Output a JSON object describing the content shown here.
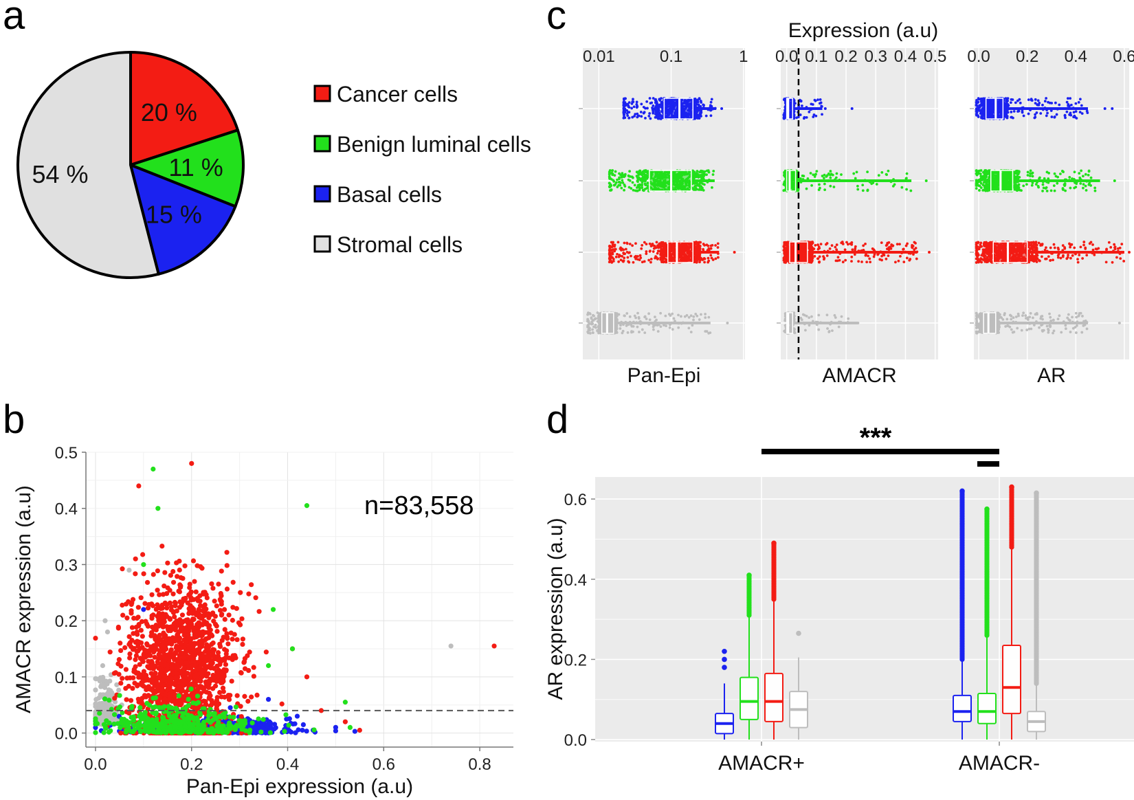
{
  "colors": {
    "cancer": "#f31c14",
    "benign": "#22e01c",
    "basal": "#1b22f0",
    "stromal": "#bdbdbd",
    "stromal_pie": "#e0e0e0",
    "panel_bg": "#ebebeb"
  },
  "panel_labels": {
    "a": "a",
    "b": "b",
    "c": "c",
    "d": "d"
  },
  "chart_data": [
    {
      "id": "a",
      "type": "pie",
      "slices": [
        {
          "name": "Cancer cells",
          "value": 20,
          "label": "20 %",
          "color": "#f31c14"
        },
        {
          "name": "Benign luminal cells",
          "value": 11,
          "label": "11 %",
          "color": "#22e01c"
        },
        {
          "name": "Basal cells",
          "value": 15,
          "label": "15 %",
          "color": "#1b22f0"
        },
        {
          "name": "Stromal cells",
          "value": 54,
          "label": "54 %",
          "color": "#e0e0e0"
        }
      ],
      "legend": [
        "Cancer cells",
        "Benign luminal cells",
        "Basal cells",
        "Stromal cells"
      ],
      "legend_position": "right"
    },
    {
      "id": "b",
      "type": "scatter",
      "xlabel": "Pan-Epi expression (a.u)",
      "ylabel": "AMACR expression (a.u)",
      "xlim": [
        -0.02,
        0.87
      ],
      "ylim": [
        -0.025,
        0.5
      ],
      "xticks": [
        "0.0",
        "0.2",
        "0.4",
        "0.6",
        "0.8"
      ],
      "yticks": [
        "0.0",
        "0.1",
        "0.2",
        "0.3",
        "0.4",
        "0.5"
      ],
      "threshold": 0.04,
      "annotation": "n=83,558",
      "series": [
        {
          "name": "Stromal cells",
          "color": "#bdbdbd",
          "cluster": {
            "x_mean": 0.02,
            "x_sd": 0.012,
            "y_mean": 0.015,
            "y_sd": 0.04,
            "n": 260
          },
          "outliers": [
            [
              0.74,
              0.155
            ],
            [
              0.02,
              0.2
            ],
            [
              0.07,
              0.29
            ],
            [
              0.025,
              0.18
            ],
            [
              0.015,
              0.12
            ]
          ]
        },
        {
          "name": "Basal cells",
          "color": "#1b22f0",
          "cluster": {
            "x_mean": 0.24,
            "x_sd": 0.08,
            "y_mean": 0.012,
            "y_sd": 0.012,
            "n": 650
          },
          "outliers": [
            [
              0.54,
              0.003
            ],
            [
              0.1,
              0.22
            ],
            [
              0.36,
              0.06
            ],
            [
              0.42,
              0.03
            ]
          ]
        },
        {
          "name": "Cancer cells",
          "color": "#f31c14",
          "cluster": {
            "x_mean": 0.18,
            "x_sd": 0.055,
            "y_mean": 0.11,
            "y_sd": 0.075,
            "n": 1500
          },
          "outliers": [
            [
              0.2,
              0.48
            ],
            [
              0.09,
              0.44
            ],
            [
              0.83,
              0.155
            ],
            [
              0.55,
              0.005
            ],
            [
              0.52,
              0.02
            ],
            [
              0.44,
              0.1
            ],
            [
              0.41,
              0.15
            ],
            [
              0.47,
              0.04
            ]
          ]
        },
        {
          "name": "Benign luminal cells",
          "color": "#22e01c",
          "cluster": {
            "x_mean": 0.17,
            "x_sd": 0.08,
            "y_mean": 0.02,
            "y_sd": 0.025,
            "n": 380
          },
          "outliers": [
            [
              0.12,
              0.47
            ],
            [
              0.44,
              0.405
            ],
            [
              0.52,
              0.055
            ],
            [
              0.37,
              0.22
            ],
            [
              0.41,
              0.15
            ],
            [
              0.13,
              0.4
            ],
            [
              0.36,
              0.12
            ],
            [
              0.53,
              0.01
            ],
            [
              0.1,
              0.3
            ]
          ]
        }
      ]
    },
    {
      "id": "c",
      "type": "scatter",
      "title": "Expression (a.u)",
      "subplots": [
        {
          "name": "Pan-Epi",
          "scale": "log",
          "xlim": [
            0.006,
            1.05
          ],
          "ticks": [
            {
              "v": 0.01,
              "label": "0.01"
            },
            {
              "v": 0.1,
              "label": "0.1"
            },
            {
              "v": 1,
              "label": "1"
            }
          ],
          "rows": [
            {
              "group": "Basal cells",
              "color": "#1b22f0",
              "lo": 0.022,
              "hi": 0.42,
              "q1": 0.08,
              "med": 0.13,
              "q3": 0.2,
              "n": 600,
              "outliers": [
                0.5
              ]
            },
            {
              "group": "Benign luminal cells",
              "color": "#22e01c",
              "lo": 0.014,
              "hi": 0.4,
              "q1": 0.05,
              "med": 0.1,
              "q3": 0.19,
              "n": 650,
              "outliers": []
            },
            {
              "group": "Cancer cells",
              "color": "#f31c14",
              "lo": 0.014,
              "hi": 0.46,
              "q1": 0.09,
              "med": 0.12,
              "q3": 0.2,
              "n": 700,
              "outliers": [
                0.75
              ]
            },
            {
              "group": "Stromal cells",
              "color": "#bdbdbd",
              "lo": 0.007,
              "hi": 0.35,
              "q1": 0.011,
              "med": 0.013,
              "q3": 0.016,
              "n": 650,
              "outliers": [
                0.6
              ]
            }
          ]
        },
        {
          "name": "AMACR",
          "scale": "linear",
          "xlim": [
            -0.02,
            0.51
          ],
          "threshold": 0.04,
          "ticks": [
            {
              "v": 0,
              "label": "0.0"
            },
            {
              "v": 0.1,
              "label": "0.1"
            },
            {
              "v": 0.2,
              "label": "0.2"
            },
            {
              "v": 0.3,
              "label": "0.3"
            },
            {
              "v": 0.4,
              "label": "0.4"
            },
            {
              "v": 0.5,
              "label": "0.5"
            }
          ],
          "rows": [
            {
              "group": "Basal cells",
              "color": "#1b22f0",
              "lo": -0.01,
              "hi": 0.12,
              "q1": 0.0,
              "med": 0.005,
              "q3": 0.02,
              "n": 200,
              "outliers": [
                0.13,
                0.22
              ]
            },
            {
              "group": "Benign luminal cells",
              "color": "#22e01c",
              "lo": -0.01,
              "hi": 0.42,
              "q1": 0.0,
              "med": 0.01,
              "q3": 0.03,
              "n": 330,
              "outliers": [
                0.47
              ]
            },
            {
              "group": "Cancer cells",
              "color": "#f31c14",
              "lo": -0.01,
              "hi": 0.44,
              "q1": 0.01,
              "med": 0.03,
              "q3": 0.07,
              "n": 650,
              "outliers": [
                0.48
              ]
            },
            {
              "group": "Stromal cells",
              "color": "#bdbdbd",
              "lo": -0.01,
              "hi": 0.24,
              "q1": 0.0,
              "med": 0.005,
              "q3": 0.02,
              "n": 160,
              "outliers": [
                0.18,
                0.24
              ]
            }
          ]
        },
        {
          "name": "AR",
          "scale": "linear",
          "xlim": [
            -0.02,
            0.62
          ],
          "ticks": [
            {
              "v": 0,
              "label": "0.0"
            },
            {
              "v": 0.2,
              "label": "0.2"
            },
            {
              "v": 0.4,
              "label": "0.4"
            },
            {
              "v": 0.6,
              "label": "0.6"
            }
          ],
          "rows": [
            {
              "group": "Basal cells",
              "color": "#1b22f0",
              "lo": -0.01,
              "hi": 0.45,
              "q1": 0.03,
              "med": 0.07,
              "q3": 0.1,
              "n": 600,
              "outliers": [
                0.52,
                0.55
              ]
            },
            {
              "group": "Benign luminal cells",
              "color": "#22e01c",
              "lo": -0.01,
              "hi": 0.5,
              "q1": 0.05,
              "med": 0.09,
              "q3": 0.14,
              "n": 650,
              "outliers": [
                0.56
              ]
            },
            {
              "group": "Cancer cells",
              "color": "#f31c14",
              "lo": -0.01,
              "hi": 0.6,
              "q1": 0.06,
              "med": 0.12,
              "q3": 0.2,
              "n": 750,
              "outliers": [
                0.62
              ]
            },
            {
              "group": "Stromal cells",
              "color": "#bdbdbd",
              "lo": -0.01,
              "hi": 0.45,
              "q1": 0.02,
              "med": 0.04,
              "q3": 0.07,
              "n": 600,
              "outliers": [
                0.58
              ]
            }
          ]
        }
      ]
    },
    {
      "id": "d",
      "type": "box",
      "ylabel": "AR expression (a.u)",
      "ylim": [
        -0.005,
        0.655
      ],
      "yticks": [
        "0.0",
        "0.2",
        "0.4",
        "0.6"
      ],
      "categories": [
        "AMACR+",
        "AMACR-"
      ],
      "significance": "***",
      "groups": [
        {
          "category": "AMACR+",
          "series": "Basal cells",
          "color": "#1b22f0",
          "whisker_low": 0.0,
          "q1": 0.015,
          "median": 0.04,
          "q3": 0.065,
          "whisker_high": 0.14,
          "outliers": [
            0.18,
            0.2,
            0.22
          ]
        },
        {
          "category": "AMACR+",
          "series": "Benign luminal cells",
          "color": "#22e01c",
          "whisker_low": 0.0,
          "q1": 0.05,
          "median": 0.095,
          "q3": 0.155,
          "whisker_high": 0.31,
          "outliers_range": [
            0.31,
            0.41
          ]
        },
        {
          "category": "AMACR+",
          "series": "Cancer cells",
          "color": "#f31c14",
          "whisker_low": 0.0,
          "q1": 0.045,
          "median": 0.095,
          "q3": 0.165,
          "whisker_high": 0.35,
          "outliers_range": [
            0.35,
            0.49
          ]
        },
        {
          "category": "AMACR+",
          "series": "Stromal cells",
          "color": "#bdbdbd",
          "whisker_low": 0.0,
          "q1": 0.03,
          "median": 0.075,
          "q3": 0.12,
          "whisker_high": 0.205,
          "outliers": [
            0.265
          ]
        },
        {
          "category": "AMACR-",
          "series": "Basal cells",
          "color": "#1b22f0",
          "whisker_low": 0.0,
          "q1": 0.045,
          "median": 0.07,
          "q3": 0.11,
          "whisker_high": 0.2,
          "outliers_range": [
            0.2,
            0.62
          ]
        },
        {
          "category": "AMACR-",
          "series": "Benign luminal cells",
          "color": "#22e01c",
          "whisker_low": 0.0,
          "q1": 0.04,
          "median": 0.07,
          "q3": 0.115,
          "whisker_high": 0.26,
          "outliers_range": [
            0.26,
            0.575
          ]
        },
        {
          "category": "AMACR-",
          "series": "Cancer cells",
          "color": "#f31c14",
          "whisker_low": 0.0,
          "q1": 0.065,
          "median": 0.13,
          "q3": 0.235,
          "whisker_high": 0.48,
          "outliers_range": [
            0.48,
            0.63
          ]
        },
        {
          "category": "AMACR-",
          "series": "Stromal cells",
          "color": "#bdbdbd",
          "whisker_low": 0.0,
          "q1": 0.02,
          "median": 0.045,
          "q3": 0.07,
          "whisker_high": 0.14,
          "outliers_range": [
            0.14,
            0.615
          ]
        }
      ]
    }
  ]
}
